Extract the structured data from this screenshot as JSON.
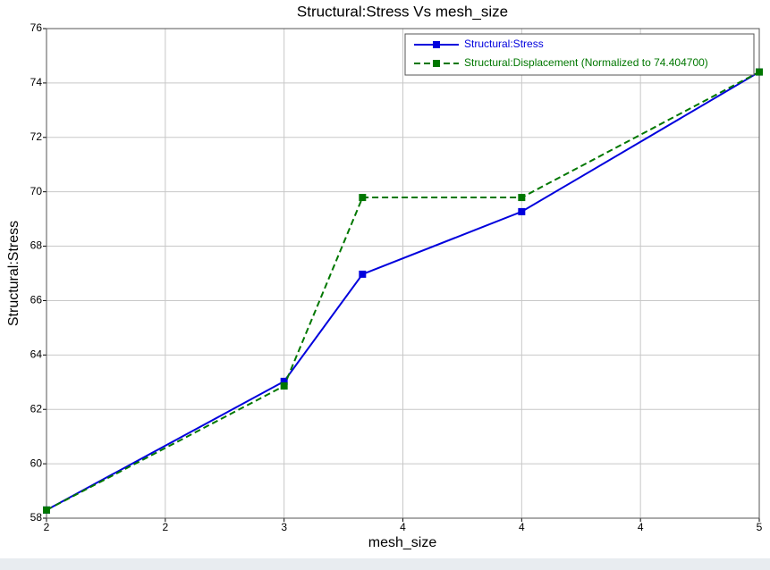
{
  "chart_data": {
    "type": "line",
    "title": "Structural:Stress Vs mesh_size",
    "x_label": "mesh_size",
    "y_label": "Structural:Stress",
    "x": [
      2,
      3,
      3.33,
      4,
      5
    ],
    "series": [
      {
        "name": "Structural:Stress",
        "color": "#0000dd",
        "dashed": false,
        "values": [
          58.3,
          63.03,
          66.97,
          69.27,
          74.4047
        ]
      },
      {
        "name": "Structural:Displacement (Normalized to 74.404700)",
        "color": "#007700",
        "dashed": true,
        "values": [
          58.3,
          62.86,
          69.79,
          69.79,
          74.4047
        ]
      }
    ],
    "xlim": [
      2,
      5
    ],
    "xticks": [
      2,
      {
        "value": 2.5,
        "label": "2"
      },
      3,
      {
        "value": 3.5,
        "label": "4"
      },
      4,
      {
        "value": 4.5,
        "label": "4"
      },
      5
    ],
    "ylim": [
      58,
      76
    ],
    "yticks": [
      58,
      60,
      62,
      64,
      66,
      68,
      70,
      72,
      74,
      76
    ],
    "grid": true,
    "legend": "top-right"
  }
}
